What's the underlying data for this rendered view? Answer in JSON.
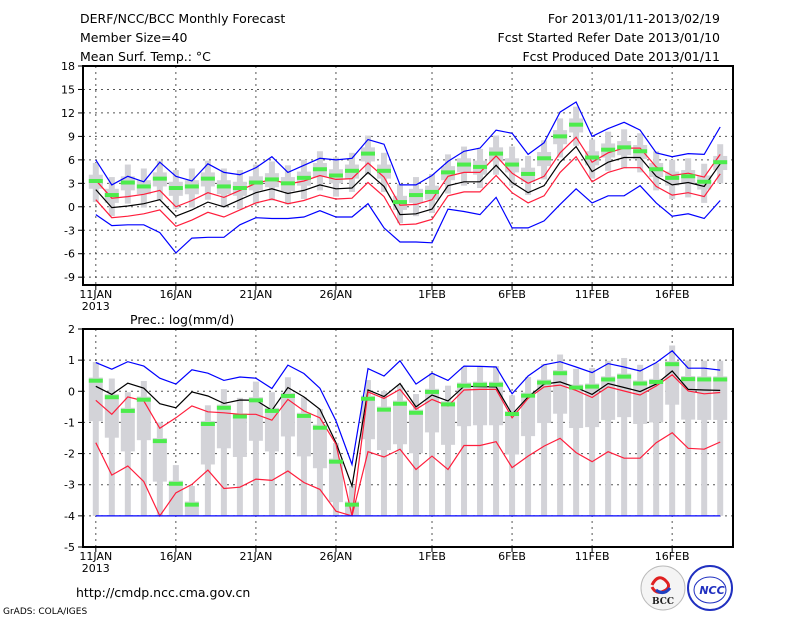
{
  "header": {
    "title": "DERF/NCC/BCC Monthly Forecast",
    "member_size": "Member Size=40",
    "variable": "Mean Surf. Temp.: °C",
    "period": "For 2013/01/11-2013/02/19",
    "started": "Fcst Started Refer Date 2013/01/10",
    "produced": "Fcst Produced Date 2013/01/11"
  },
  "footer": {
    "url": "http://cmdp.ncc.cma.gov.cn",
    "credit": "GrADS: COLA/IGES",
    "logo_bcc": "BCC",
    "logo_ncc": "NCC"
  },
  "colors": {
    "blue": "#0000ff",
    "red": "#ff1e3c",
    "black": "#000000",
    "green": "#4cec4c",
    "box": "#d3d3d8",
    "grid": "#555555"
  },
  "chart_data": [
    {
      "type": "line",
      "title": "Mean Surf. Temp.: °C",
      "ylabel": "°C",
      "ylim": [
        -10,
        18
      ],
      "yticks": [
        "-9",
        "-6",
        "-3",
        "0",
        "3",
        "6",
        "9",
        "12",
        "15",
        "18"
      ],
      "ytick_values": [
        -9,
        -6,
        -3,
        0,
        3,
        6,
        9,
        12,
        15,
        18
      ],
      "xticks": [
        "11JAN",
        "16JAN",
        "21JAN",
        "26JAN",
        "1FEB",
        "6FEB",
        "11FEB",
        "16FEB"
      ],
      "xtick_days": [
        0,
        5,
        10,
        15,
        21,
        26,
        31,
        36
      ],
      "year_label": "2013",
      "days": 40,
      "series": [
        {
          "name": "blue_hi",
          "color": "blue",
          "values": [
            6.0,
            2.8,
            3.9,
            3.2,
            5.7,
            3.9,
            3.3,
            5.5,
            4.4,
            4.1,
            5.0,
            6.4,
            4.4,
            5.3,
            6.2,
            6.0,
            6.2,
            8.6,
            8.0,
            2.8,
            2.8,
            4.0,
            5.8,
            7.1,
            7.5,
            9.8,
            9.4,
            6.7,
            8.2,
            12.1,
            13.4,
            9.0,
            10.0,
            10.8,
            9.8,
            6.9,
            6.4,
            6.8,
            6.7,
            10.2
          ]
        },
        {
          "name": "red_hi",
          "color": "red",
          "values": [
            3.4,
            1.1,
            1.3,
            1.6,
            2.1,
            0,
            0.8,
            1.8,
            1.2,
            2.1,
            3.0,
            3.5,
            2.9,
            3.3,
            4.0,
            3.5,
            3.6,
            5.6,
            3.8,
            0.2,
            0.3,
            0.9,
            3.9,
            4.4,
            4.4,
            6.5,
            4.3,
            3.0,
            3.9,
            6.9,
            8.9,
            5.7,
            6.9,
            7.5,
            7.5,
            5.1,
            4.0,
            4.3,
            3.8,
            6.7
          ]
        },
        {
          "name": "mean",
          "color": "black",
          "values": [
            2.2,
            -0.1,
            0.1,
            0.4,
            0.9,
            -1.2,
            -0.4,
            0.6,
            0,
            0.9,
            1.8,
            2.3,
            1.7,
            2.1,
            2.8,
            2.3,
            2.4,
            4.4,
            2.6,
            -1.0,
            -0.9,
            -0.3,
            2.7,
            3.2,
            3.2,
            5.3,
            3.1,
            1.8,
            2.7,
            5.7,
            7.7,
            4.5,
            5.7,
            6.3,
            6.3,
            3.9,
            2.8,
            3.1,
            2.6,
            5.5
          ]
        },
        {
          "name": "red_lo",
          "color": "red",
          "values": [
            0.9,
            -1.4,
            -1.2,
            -0.9,
            -0.4,
            -2.5,
            -1.7,
            -0.7,
            -1.3,
            -0.4,
            0.5,
            1.0,
            0.4,
            0.8,
            1.5,
            1.0,
            1.1,
            3.1,
            1.3,
            -2.3,
            -2.2,
            -1.6,
            1.4,
            1.9,
            1.9,
            4.0,
            1.8,
            0.5,
            1.4,
            4.4,
            6.4,
            3.2,
            4.4,
            5.0,
            5.0,
            2.6,
            1.5,
            1.8,
            1.3,
            4.2
          ]
        },
        {
          "name": "blue_lo",
          "color": "blue",
          "values": [
            -1.0,
            -2.4,
            -2.3,
            -2.3,
            -3.3,
            -5.9,
            -4.0,
            -3.9,
            -3.9,
            -2.3,
            -1.4,
            -1.5,
            -1.5,
            -1.3,
            -0.5,
            -1.3,
            -1.3,
            0.4,
            -2.7,
            -4.5,
            -4.5,
            -4.6,
            -0.3,
            -0.6,
            -1.0,
            1.2,
            -2.7,
            -2.7,
            -1.8,
            0.3,
            2.3,
            0.5,
            1.4,
            1.4,
            2.7,
            0.5,
            -1.2,
            -0.9,
            -1.5,
            0.8
          ]
        }
      ],
      "markers": {
        "name": "green",
        "values": [
          3.3,
          1.5,
          3.1,
          2.6,
          3.6,
          2.4,
          2.6,
          3.6,
          2.6,
          2.4,
          3.1,
          3.5,
          3.0,
          3.7,
          4.8,
          4.0,
          4.6,
          6.8,
          4.6,
          0.6,
          1.5,
          1.9,
          4.4,
          5.4,
          5.1,
          6.8,
          5.4,
          4.2,
          6.2,
          9.0,
          10.5,
          6.3,
          7.3,
          7.6,
          7.1,
          4.8,
          3.7,
          3.9,
          3.2,
          5.7
        ]
      },
      "boxes": {
        "max": [
          5.6,
          3.8,
          5.4,
          4.9,
          5.9,
          4.7,
          4.9,
          5.9,
          4.9,
          4.7,
          5.4,
          5.8,
          5.3,
          6.0,
          7.1,
          6.3,
          6.9,
          9.1,
          6.9,
          2.9,
          3.8,
          4.2,
          6.7,
          7.7,
          7.4,
          9.1,
          7.7,
          6.5,
          8.5,
          11.3,
          12.8,
          8.6,
          9.6,
          9.9,
          9.4,
          7.1,
          6.0,
          6.2,
          5.5,
          8.0
        ],
        "q3": [
          4.1,
          2.3,
          3.9,
          3.4,
          4.4,
          3.2,
          3.4,
          4.4,
          3.4,
          3.2,
          3.9,
          4.3,
          3.8,
          4.5,
          5.6,
          4.8,
          5.4,
          7.6,
          5.4,
          1.4,
          2.3,
          2.7,
          5.2,
          6.2,
          5.9,
          7.6,
          6.2,
          5.0,
          7.0,
          9.8,
          11.3,
          7.1,
          8.1,
          8.4,
          7.9,
          5.6,
          4.5,
          4.7,
          4.0,
          6.5
        ],
        "q1": [
          2.3,
          0.5,
          2.1,
          1.6,
          2.6,
          1.4,
          1.6,
          2.6,
          1.6,
          1.4,
          2.1,
          2.5,
          2.0,
          2.7,
          3.8,
          3.0,
          3.6,
          5.8,
          3.6,
          -0.4,
          0.5,
          0.9,
          3.4,
          4.4,
          4.1,
          5.8,
          4.4,
          3.2,
          5.2,
          8.0,
          9.5,
          5.3,
          6.3,
          6.6,
          6.1,
          3.8,
          2.7,
          2.9,
          2.2,
          4.7
        ],
        "min": [
          0.6,
          -1.2,
          0.4,
          -0.1,
          0.9,
          -0.3,
          -0.1,
          0.9,
          -0.1,
          -0.3,
          0.4,
          0.8,
          0.3,
          1.0,
          2.1,
          1.3,
          1.9,
          4.1,
          1.9,
          -2.1,
          -1.2,
          -0.8,
          1.7,
          2.7,
          2.4,
          4.1,
          2.7,
          1.5,
          3.5,
          6.3,
          7.8,
          3.6,
          4.6,
          4.9,
          4.4,
          2.1,
          1.0,
          1.2,
          0.5,
          3.0
        ]
      }
    },
    {
      "type": "line",
      "title": "Prec.: log(mm/d)",
      "ylabel": "log(mm/d)",
      "ylim": [
        -5,
        2
      ],
      "yticks": [
        "-5",
        "-4",
        "-3",
        "-2",
        "-1",
        "0",
        "1",
        "2"
      ],
      "ytick_values": [
        -5,
        -4,
        -3,
        -2,
        -1,
        0,
        1,
        2
      ],
      "xticks": [
        "11JAN",
        "16JAN",
        "21JAN",
        "26JAN",
        "1FEB",
        "6FEB",
        "11FEB",
        "16FEB"
      ],
      "xtick_days": [
        0,
        5,
        10,
        15,
        21,
        26,
        31,
        36
      ],
      "year_label": "2013",
      "days": 40,
      "series": [
        {
          "name": "blue_hi",
          "color": "blue",
          "values": [
            0.92,
            0.71,
            0.95,
            0.81,
            0.42,
            0.23,
            0.69,
            0.58,
            0.35,
            0.46,
            0.42,
            0.09,
            0.84,
            0.57,
            0.1,
            -0.95,
            -2.35,
            0.73,
            0.49,
            0.98,
            0.23,
            0.58,
            0.35,
            0.81,
            0.8,
            0.78,
            -0.08,
            0.49,
            0.85,
            0.95,
            0.78,
            0.6,
            0.89,
            0.78,
            0.65,
            0.92,
            1.3,
            0.74,
            0.74,
            0.68
          ]
        },
        {
          "name": "mean",
          "color": "black",
          "values": [
            0.16,
            -0.1,
            0.26,
            0.1,
            -0.4,
            -0.53,
            -0.02,
            -0.15,
            -0.39,
            -0.28,
            -0.29,
            -0.61,
            0.12,
            -0.18,
            -0.58,
            -1.65,
            -3.04,
            0.04,
            -0.17,
            0.25,
            -0.5,
            -0.12,
            -0.31,
            0.16,
            0.15,
            0.14,
            -0.74,
            -0.18,
            0.23,
            0.3,
            0.12,
            -0.1,
            0.25,
            0.12,
            -0.01,
            0.23,
            0.65,
            0.06,
            0.04,
            0.03
          ]
        },
        {
          "name": "red_hi",
          "color": "red",
          "values": [
            -0.29,
            -0.74,
            -0.18,
            -0.31,
            -1.19,
            -0.85,
            -0.47,
            -0.66,
            -0.69,
            -0.74,
            -0.74,
            -0.93,
            -0.26,
            -0.63,
            -0.85,
            -1.7,
            -4.0,
            -0.02,
            -0.23,
            0.06,
            -0.58,
            -0.26,
            -0.47,
            0.04,
            0.06,
            0.06,
            -0.85,
            -0.23,
            0.14,
            0.2,
            0.03,
            -0.2,
            0.14,
            0.01,
            -0.12,
            0.17,
            0.53,
            0.01,
            -0.08,
            -0.04
          ]
        },
        {
          "name": "red_lo",
          "color": "red",
          "values": [
            -1.65,
            -2.69,
            -2.4,
            -2.9,
            -4.0,
            -3.26,
            -2.99,
            -2.53,
            -3.12,
            -3.08,
            -2.82,
            -2.86,
            -2.56,
            -2.93,
            -3.15,
            -3.85,
            -4.0,
            -1.94,
            -2.11,
            -1.86,
            -2.51,
            -2.08,
            -2.51,
            -1.74,
            -1.74,
            -1.62,
            -2.45,
            -2.08,
            -1.76,
            -1.51,
            -1.97,
            -2.26,
            -1.94,
            -2.15,
            -2.15,
            -1.65,
            -1.33,
            -1.83,
            -1.86,
            -1.63
          ]
        },
        {
          "name": "blue_lo",
          "color": "blue",
          "values": [
            -4,
            -4,
            -4,
            -4,
            -4,
            -4,
            -4,
            -4,
            -4,
            -4,
            -4,
            -4,
            -4,
            -4,
            -4,
            -4,
            -4,
            -4,
            -4,
            -4,
            -4,
            -4,
            -4,
            -4,
            -4,
            -4,
            -4,
            -4,
            -4,
            -4,
            -4,
            -4,
            -4,
            -4,
            -4,
            -4,
            -4,
            -4,
            -4,
            -4
          ]
        }
      ],
      "markers": {
        "name": "green",
        "values": [
          0.34,
          -0.19,
          -0.63,
          -0.27,
          -1.6,
          -2.97,
          -3.64,
          -1.05,
          -0.53,
          -0.81,
          -0.29,
          -0.63,
          -0.15,
          -0.79,
          -1.17,
          -2.26,
          -3.64,
          -0.24,
          -0.59,
          -0.4,
          -0.69,
          -0.02,
          -0.42,
          0.18,
          0.21,
          0.21,
          -0.73,
          -0.14,
          0.28,
          0.58,
          0.12,
          0.15,
          0.38,
          0.47,
          0.25,
          0.3,
          0.87,
          0.39,
          0.38,
          0.38
        ]
      },
      "boxes": {
        "max": [
          0.94,
          0.41,
          -0.03,
          0.33,
          -1.0,
          -2.37,
          -3.04,
          -0.45,
          0.07,
          -0.21,
          0.31,
          -0.03,
          0.45,
          -0.19,
          -0.57,
          -1.66,
          -3.04,
          0.36,
          0.01,
          0.2,
          -0.09,
          0.58,
          0.18,
          0.78,
          0.81,
          0.81,
          -0.13,
          0.46,
          0.88,
          1.18,
          0.72,
          0.75,
          0.98,
          1.07,
          0.85,
          0.9,
          1.47,
          0.99,
          0.98,
          0.98
        ],
        "q3": [
          0.44,
          -0.09,
          -0.53,
          -0.17,
          -1.5,
          -2.87,
          -3.54,
          -0.95,
          -0.43,
          -0.71,
          -0.19,
          -0.53,
          -0.05,
          -0.69,
          -1.07,
          -2.16,
          -3.54,
          -0.14,
          -0.49,
          -0.3,
          -0.59,
          0.08,
          -0.32,
          0.28,
          0.31,
          0.31,
          -0.63,
          -0.04,
          0.38,
          0.68,
          0.22,
          0.25,
          0.48,
          0.57,
          0.35,
          0.4,
          0.97,
          0.49,
          0.48,
          0.48
        ],
        "q1": [
          -0.96,
          -1.49,
          -1.93,
          -1.57,
          -2.9,
          -4,
          -4,
          -2.35,
          -1.83,
          -2.11,
          -1.59,
          -1.93,
          -1.45,
          -2.09,
          -2.47,
          -3.56,
          -4,
          -1.54,
          -1.89,
          -1.7,
          -1.99,
          -1.32,
          -1.72,
          -1.12,
          -1.09,
          -1.09,
          -2.03,
          -1.44,
          -1.02,
          -0.72,
          -1.18,
          -1.15,
          -0.92,
          -0.83,
          -1.05,
          -1.0,
          -0.43,
          -0.91,
          -0.92,
          -0.92
        ],
        "min": [
          -4,
          -4,
          -4,
          -4,
          -4,
          -4,
          -4,
          -4,
          -4,
          -4,
          -4,
          -4,
          -4,
          -4,
          -4,
          -4,
          -4,
          -4,
          -4,
          -4,
          -4,
          -4,
          -4,
          -4,
          -4,
          -4,
          -4,
          -4,
          -4,
          -4,
          -4,
          -4,
          -4,
          -4,
          -4,
          -4,
          -4,
          -4,
          -4,
          -4
        ]
      }
    }
  ]
}
